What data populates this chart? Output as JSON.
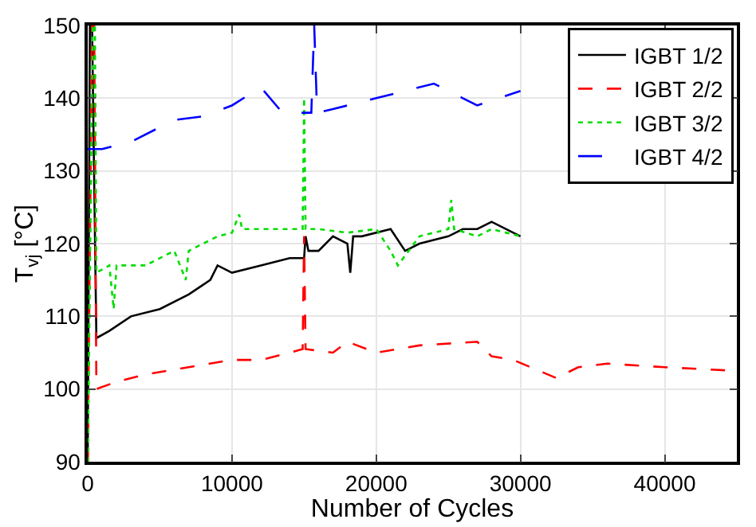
{
  "chart_data": {
    "type": "line",
    "xlabel": "Number of Cycles",
    "ylabel": "T$_{vj}$ [°C]",
    "xlim": [
      0,
      45000
    ],
    "ylim": [
      90,
      150
    ],
    "xticks": [
      0,
      10000,
      20000,
      30000,
      40000
    ],
    "yticks": [
      90,
      100,
      110,
      120,
      130,
      140,
      150
    ],
    "grid": true,
    "legend": "top right",
    "marker": "none",
    "series": [
      {
        "name": "IGBT 1/2",
        "color": "#000000",
        "line_style": "solid",
        "x": [
          0,
          150,
          300,
          600,
          1500,
          3000,
          5000,
          7000,
          8500,
          9000,
          10000,
          12000,
          14000,
          15000,
          15100,
          15300,
          16000,
          17000,
          18000,
          18200,
          18400,
          19000,
          21000,
          22000,
          23000,
          25000,
          26000,
          27000,
          28000,
          30000
        ],
        "values": [
          90,
          150,
          150,
          107,
          108,
          110,
          111,
          113,
          115,
          117,
          116,
          117,
          118,
          118,
          121,
          119,
          119,
          121,
          120,
          116,
          121,
          121,
          122,
          119,
          120,
          121,
          122,
          122,
          123,
          121
        ]
      },
      {
        "name": "IGBT 2/2",
        "color": "#ff0000",
        "line_style": "dashed",
        "x": [
          0,
          300,
          450,
          600,
          2000,
          4000,
          7000,
          10000,
          12000,
          14000,
          14900,
          15000,
          15100,
          17000,
          18000,
          20000,
          23000,
          27000,
          28000,
          29500,
          32500,
          34000,
          36000,
          40000,
          45000
        ],
        "values": [
          90,
          150,
          150,
          100,
          101,
          102,
          103,
          104,
          104,
          105,
          105.5,
          121,
          105.5,
          105,
          106.5,
          105,
          106,
          106.5,
          104.5,
          104,
          101.5,
          103,
          103.5,
          103,
          102.5
        ]
      },
      {
        "name": "IGBT 3/2",
        "color": "#00dd00",
        "line_style": "dotted",
        "x": [
          0,
          350,
          500,
          600,
          1500,
          1800,
          2000,
          4000,
          6000,
          6800,
          7000,
          9000,
          10000,
          10500,
          10700,
          12000,
          14000,
          14900,
          15000,
          15100,
          16000,
          18000,
          20000,
          21000,
          21500,
          23000,
          25000,
          25200,
          25400,
          27000,
          28000,
          30000
        ],
        "values": [
          90,
          150,
          150,
          116,
          117,
          111,
          117,
          117,
          119,
          115,
          119,
          121,
          121.5,
          124,
          122,
          122,
          122,
          122,
          140,
          122,
          122,
          121.5,
          122,
          119,
          117,
          121,
          122,
          126,
          122,
          121,
          122,
          121
        ]
      },
      {
        "name": "IGBT 4/2",
        "color": "#0000ff",
        "line_style": "dashdot",
        "x": [
          0,
          1000,
          3000,
          5000,
          6000,
          8000,
          10000,
          12000,
          13500,
          15500,
          15700,
          15900,
          17000,
          20000,
          22000,
          24000,
          26000,
          27000,
          30000
        ],
        "values": [
          133,
          133,
          134,
          136,
          137,
          137.5,
          139,
          141.5,
          138,
          138,
          150,
          138,
          138.5,
          140,
          141,
          142,
          140,
          139,
          141
        ]
      }
    ]
  }
}
